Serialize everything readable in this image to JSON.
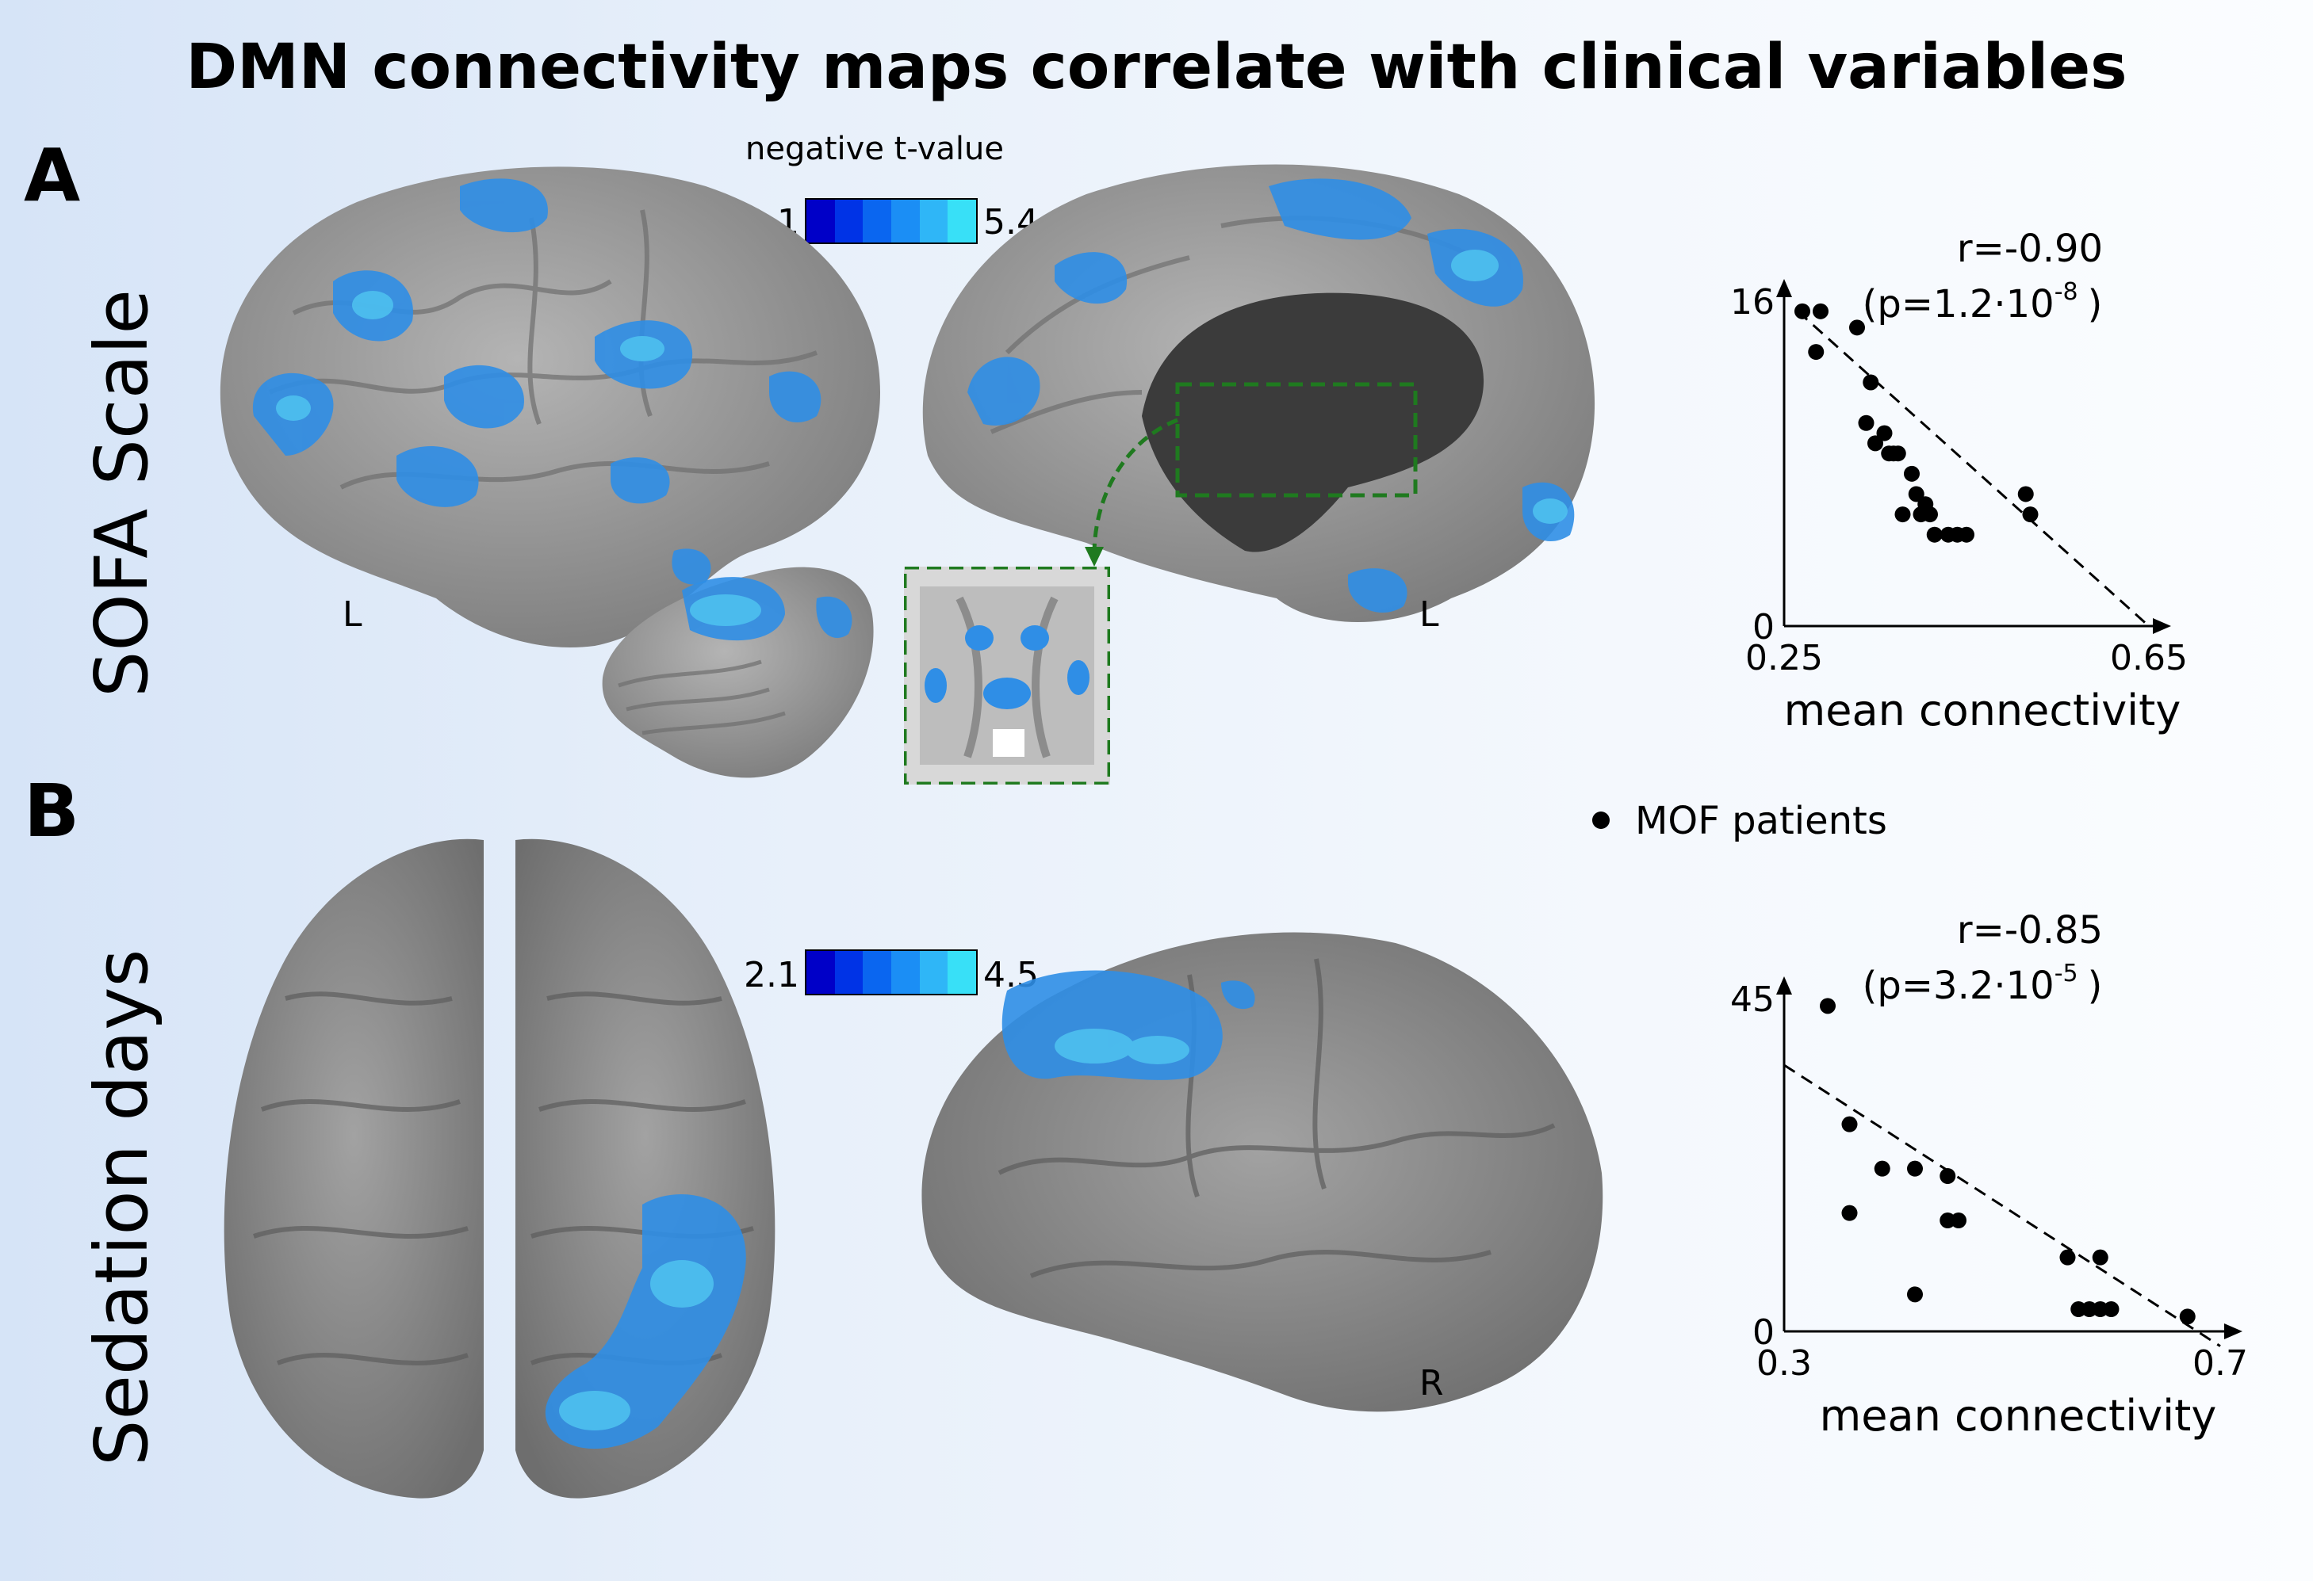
{
  "title": "DMN connectivity maps correlate with clinical variables",
  "panels": {
    "a": {
      "letter": "A",
      "row_label": "SOFA Scale",
      "colorbar": {
        "title": "negative t-value",
        "min": "2.1",
        "max": "5.4"
      },
      "hemisphere_left_lateral": "L",
      "hemisphere_left_medial": "L",
      "stat_r": "r=-0.90",
      "stat_p_prefix": "(p=1.2·10",
      "stat_p_exp": "-8",
      "stat_p_suffix": ")"
    },
    "b": {
      "letter": "B",
      "row_label": "Sedation days",
      "colorbar": {
        "min": "2.1",
        "max": "4.5"
      },
      "hemisphere_right": "R",
      "stat_r": "r=-0.85",
      "stat_p_prefix": "(p=3.2·10",
      "stat_p_exp": "-5",
      "stat_p_suffix": ")"
    }
  },
  "legend": {
    "label": "MOF patients"
  },
  "colors": {
    "activation": "#2f8ee6",
    "activation_light": "#4fc3f0",
    "brain": "#9a9a9a",
    "roi_box": "#1f7a1f",
    "colorbar_stops": [
      "#0000c8",
      "#0033e6",
      "#0a66f0",
      "#1b8ef5",
      "#2fb6f7",
      "#38e0f7"
    ]
  },
  "chart_data": [
    {
      "type": "scatter",
      "title": "",
      "xlabel": "mean connectivity",
      "ylabel": "SOFA Scale",
      "xlim": [
        0.25,
        0.65
      ],
      "ylim": [
        0,
        16
      ],
      "xticks": [
        "0.25",
        "0.65"
      ],
      "yticks": [
        "0",
        "16"
      ],
      "series": [
        {
          "name": "MOF patients",
          "x": [
            0.27,
            0.285,
            0.29,
            0.33,
            0.345,
            0.34,
            0.36,
            0.35,
            0.365,
            0.37,
            0.375,
            0.39,
            0.395,
            0.38,
            0.4,
            0.405,
            0.41,
            0.415,
            0.43,
            0.44,
            0.45,
            0.515,
            0.52
          ],
          "y": [
            15.5,
            13.5,
            15.5,
            14.7,
            12.0,
            10.0,
            9.5,
            9.0,
            8.5,
            8.5,
            8.5,
            7.5,
            6.5,
            5.5,
            5.5,
            6.0,
            5.5,
            4.5,
            4.5,
            4.5,
            4.5,
            6.5,
            5.5
          ]
        }
      ],
      "fit_line": {
        "x": [
          0.265,
          0.65
        ],
        "y": [
          15.5,
          0
        ]
      }
    },
    {
      "type": "scatter",
      "title": "",
      "xlabel": "mean connectivity",
      "ylabel": "Sedation days",
      "xlim": [
        0.3,
        0.7
      ],
      "ylim": [
        0,
        45
      ],
      "xticks": [
        "0.3",
        "0.7"
      ],
      "yticks": [
        "0",
        "45"
      ],
      "series": [
        {
          "name": "MOF patients",
          "x": [
            0.34,
            0.36,
            0.36,
            0.39,
            0.42,
            0.42,
            0.45,
            0.45,
            0.46,
            0.56,
            0.57,
            0.58,
            0.59,
            0.59,
            0.6,
            0.67
          ],
          "y": [
            44,
            28,
            16,
            22,
            22,
            5,
            21,
            15,
            15,
            10,
            3,
            3,
            3,
            10,
            3,
            2
          ]
        }
      ],
      "fit_line": {
        "x": [
          0.3,
          0.7
        ],
        "y": [
          36,
          -2
        ]
      }
    }
  ]
}
